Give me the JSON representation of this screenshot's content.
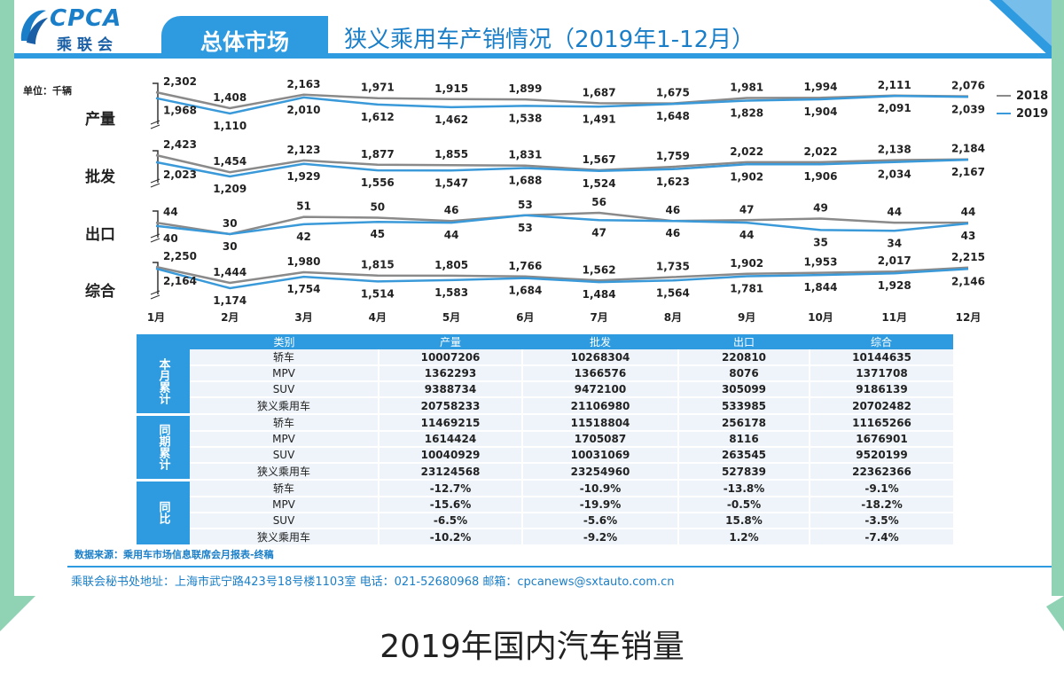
{
  "header": {
    "logo_en": "CPCA",
    "logo_cn": "乘联会",
    "tab": "总体市场",
    "title": "狭义乘用车产销情况（2019年1-12月）"
  },
  "unit": "单位：千辆",
  "colors": {
    "y2018": "#8a8a8a",
    "y2019": "#3a9ad9",
    "accent": "#2e9be0"
  },
  "chart_data": {
    "type": "line",
    "categories": [
      "1月",
      "2月",
      "3月",
      "4月",
      "5月",
      "6月",
      "7月",
      "8月",
      "9月",
      "10月",
      "11月",
      "12月"
    ],
    "legend": [
      "2018",
      "2019"
    ],
    "legend_position": "right",
    "panels": [
      {
        "name": "产量",
        "series": [
          {
            "name": "2018",
            "values": [
              2302,
              1408,
              2163,
              1971,
              1915,
              1899,
              1687,
              1675,
              1981,
              1994,
              2111,
              2076
            ],
            "labels": [
              "2,302",
              "1,408",
              "2,163",
              "1,971",
              "1,915",
              "1,899",
              "1,687",
              "1,675",
              "1,981",
              "1,994",
              "2,111",
              "2,076"
            ]
          },
          {
            "name": "2019",
            "values": [
              1968,
              1110,
              2010,
              1612,
              1462,
              1538,
              1491,
              1648,
              1828,
              1904,
              2091,
              2039
            ],
            "labels": [
              "1,968",
              "1,110",
              "2,010",
              "1,612",
              "1,462",
              "1,538",
              "1,491",
              "1,648",
              "1,828",
              "1,904",
              "2,091",
              "2,039"
            ]
          }
        ]
      },
      {
        "name": "批发",
        "series": [
          {
            "name": "2018",
            "values": [
              2423,
              1454,
              2123,
              1877,
              1855,
              1831,
              1567,
              1759,
              2022,
              2022,
              2138,
              2184
            ],
            "labels": [
              "2,423",
              "1,454",
              "2,123",
              "1,877",
              "1,855",
              "1,831",
              "1,567",
              "1,759",
              "2,022",
              "2,022",
              "2,138",
              "2,184"
            ]
          },
          {
            "name": "2019",
            "values": [
              2023,
              1209,
              1929,
              1556,
              1547,
              1688,
              1524,
              1623,
              1902,
              1906,
              2034,
              2167
            ],
            "labels": [
              "2,023",
              "1,209",
              "1,929",
              "1,556",
              "1,547",
              "1,688",
              "1,524",
              "1,623",
              "1,902",
              "1,906",
              "2,034",
              "2,167"
            ]
          }
        ]
      },
      {
        "name": "出口",
        "series": [
          {
            "name": "2018",
            "values": [
              44,
              30,
              51,
              50,
              46,
              53,
              56,
              46,
              47,
              49,
              44,
              44
            ],
            "labels": [
              "44",
              "30",
              "51",
              "50",
              "46",
              "53",
              "56",
              "46",
              "47",
              "49",
              "44",
              "44"
            ]
          },
          {
            "name": "2019",
            "values": [
              40,
              30,
              42,
              45,
              44,
              53,
              47,
              46,
              44,
              35,
              34,
              43
            ],
            "labels": [
              "40",
              "30",
              "42",
              "45",
              "44",
              "53",
              "47",
              "46",
              "44",
              "35",
              "34",
              "43"
            ]
          }
        ]
      },
      {
        "name": "综合",
        "series": [
          {
            "name": "2018",
            "values": [
              2250,
              1444,
              1980,
              1815,
              1805,
              1766,
              1562,
              1735,
              1902,
              1953,
              2017,
              2215
            ],
            "labels": [
              "2,250",
              "1,444",
              "1,980",
              "1,815",
              "1,805",
              "1,766",
              "1,562",
              "1,735",
              "1,902",
              "1,953",
              "2,017",
              "2,215"
            ]
          },
          {
            "name": "2019",
            "values": [
              2164,
              1174,
              1754,
              1514,
              1583,
              1684,
              1484,
              1564,
              1781,
              1844,
              1928,
              2146
            ],
            "labels": [
              "2,164",
              "1,174",
              "1,754",
              "1,514",
              "1,583",
              "1,684",
              "1,484",
              "1,564",
              "1,781",
              "1,844",
              "1,928",
              "2,146"
            ]
          }
        ]
      }
    ]
  },
  "table": {
    "headers": [
      "类别",
      "产量",
      "批发",
      "出口",
      "综合"
    ],
    "groups": [
      {
        "label": "本月累计",
        "rows": [
          [
            "轿车",
            "10007206",
            "10268304",
            "220810",
            "10144635"
          ],
          [
            "MPV",
            "1362293",
            "1366576",
            "8076",
            "1371708"
          ],
          [
            "SUV",
            "9388734",
            "9472100",
            "305099",
            "9186139"
          ],
          [
            "狭义乘用车",
            "20758233",
            "21106980",
            "533985",
            "20702482"
          ]
        ]
      },
      {
        "label": "同期累计",
        "rows": [
          [
            "轿车",
            "11469215",
            "11518804",
            "256178",
            "11165266"
          ],
          [
            "MPV",
            "1614424",
            "1705087",
            "8116",
            "1676901"
          ],
          [
            "SUV",
            "10040929",
            "10031069",
            "263545",
            "9520199"
          ],
          [
            "狭义乘用车",
            "23124568",
            "23254960",
            "527839",
            "22362366"
          ]
        ]
      },
      {
        "label": "同比",
        "rows": [
          [
            "轿车",
            "-12.7%",
            "-10.9%",
            "-13.8%",
            "-9.1%"
          ],
          [
            "MPV",
            "-15.6%",
            "-19.9%",
            "-0.5%",
            "-18.2%"
          ],
          [
            "SUV",
            "-6.5%",
            "-5.6%",
            "15.8%",
            "-3.5%"
          ],
          [
            "狭义乘用车",
            "-10.2%",
            "-9.2%",
            "1.2%",
            "-7.4%"
          ]
        ]
      }
    ]
  },
  "source": "数据来源：乘用车市场信息联席会月报表-终稿",
  "footer": "乘联会秘书处地址：上海市武宁路423号18号楼1103室  电话：021-52680968  邮箱：cpcanews@sxtauto.com.cn",
  "caption": "2019年国内汽车销量"
}
